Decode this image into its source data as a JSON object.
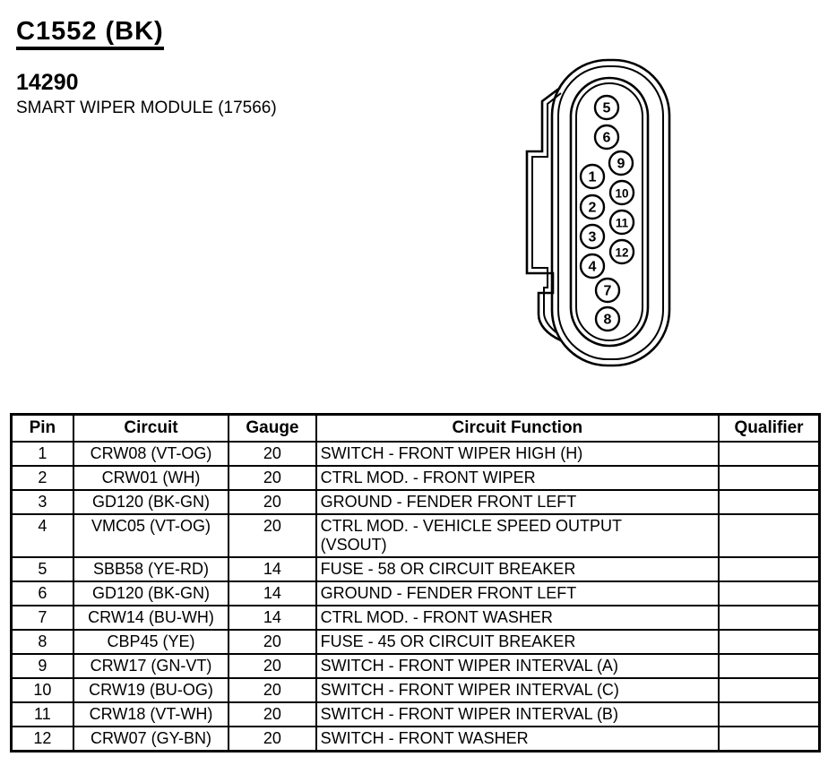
{
  "header": {
    "connector_id": "C1552 (BK)",
    "part_number": "14290",
    "component_name": "SMART WIPER MODULE (17566)"
  },
  "connector": {
    "pins": [
      "5",
      "6",
      "9",
      "1",
      "10",
      "2",
      "11",
      "3",
      "12",
      "4",
      "7",
      "8"
    ]
  },
  "table": {
    "headers": [
      "Pin",
      "Circuit",
      "Gauge",
      "Circuit Function",
      "Qualifier"
    ],
    "rows": [
      {
        "pin": "1",
        "circuit": "CRW08 (VT-OG)",
        "gauge": "20",
        "function": "SWITCH - FRONT WIPER HIGH (H)",
        "qualifier": ""
      },
      {
        "pin": "2",
        "circuit": "CRW01 (WH)",
        "gauge": "20",
        "function": "CTRL MOD. - FRONT WIPER",
        "qualifier": ""
      },
      {
        "pin": "3",
        "circuit": "GD120 (BK-GN)",
        "gauge": "20",
        "function": "GROUND - FENDER FRONT LEFT",
        "qualifier": ""
      },
      {
        "pin": "4",
        "circuit": "VMC05 (VT-OG)",
        "gauge": "20",
        "function": "CTRL MOD. - VEHICLE SPEED OUTPUT\n(VSOUT)",
        "qualifier": ""
      },
      {
        "pin": "5",
        "circuit": "SBB58 (YE-RD)",
        "gauge": "14",
        "function": "FUSE - 58 OR CIRCUIT BREAKER",
        "qualifier": ""
      },
      {
        "pin": "6",
        "circuit": "GD120 (BK-GN)",
        "gauge": "14",
        "function": "GROUND - FENDER FRONT LEFT",
        "qualifier": ""
      },
      {
        "pin": "7",
        "circuit": "CRW14 (BU-WH)",
        "gauge": "14",
        "function": "CTRL MOD. - FRONT WASHER",
        "qualifier": ""
      },
      {
        "pin": "8",
        "circuit": "CBP45 (YE)",
        "gauge": "20",
        "function": "FUSE - 45 OR CIRCUIT BREAKER",
        "qualifier": ""
      },
      {
        "pin": "9",
        "circuit": "CRW17 (GN-VT)",
        "gauge": "20",
        "function": "SWITCH - FRONT WIPER INTERVAL (A)",
        "qualifier": ""
      },
      {
        "pin": "10",
        "circuit": "CRW19 (BU-OG)",
        "gauge": "20",
        "function": "SWITCH - FRONT WIPER INTERVAL (C)",
        "qualifier": ""
      },
      {
        "pin": "11",
        "circuit": "CRW18 (VT-WH)",
        "gauge": "20",
        "function": "SWITCH - FRONT WIPER INTERVAL (B)",
        "qualifier": ""
      },
      {
        "pin": "12",
        "circuit": "CRW07 (GY-BN)",
        "gauge": "20",
        "function": "SWITCH - FRONT WASHER",
        "qualifier": ""
      }
    ]
  },
  "colors": {
    "ink": "#000000",
    "paper": "#ffffff"
  }
}
